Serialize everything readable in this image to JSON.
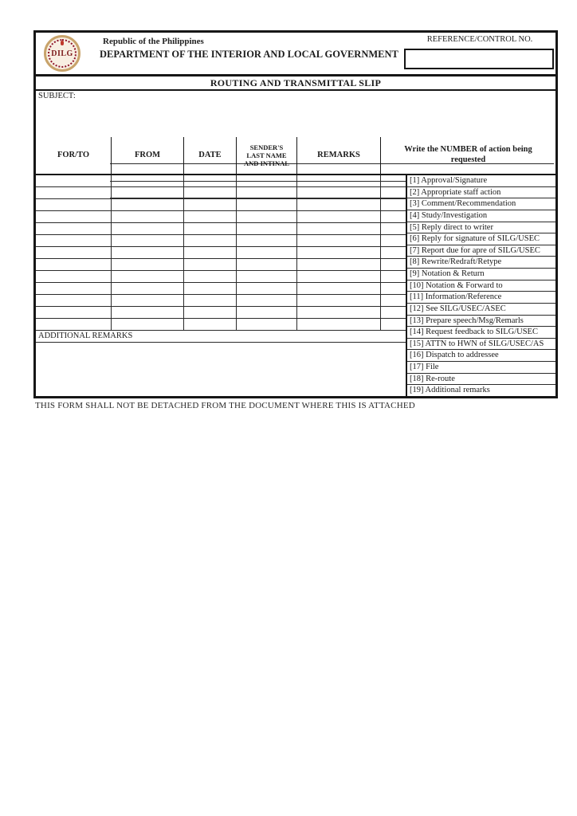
{
  "header": {
    "logo_text": "DILG",
    "republic_line": "Republic of the Philippines",
    "department_line": "DEPARTMENT OF THE INTERIOR AND LOCAL GOVERNMENT",
    "reference_label": "REFERENCE/CONTROL NO.",
    "reference_value": ""
  },
  "title_bar": {
    "title": "ROUTING AND TRANSMITTAL SLIP"
  },
  "subject": {
    "label": "SUBJECT:",
    "lines": [
      "",
      "",
      ""
    ],
    "line_tops": [
      78,
      100,
      121
    ]
  },
  "table": {
    "columns": [
      "FOR/TO",
      "FROM",
      "DATE",
      "SENDER'S\nLAST NAME\nAND INTINAL",
      "REMARKS"
    ],
    "action_header": "Write the NUMBER of action being requested",
    "empty_row_count": 13,
    "cell_names": [
      "for-to",
      "from",
      "date",
      "sender-name",
      "remarks",
      "action-number"
    ]
  },
  "action_list": {
    "items": [
      "[1] Approval/Signature",
      "[2] Appropriate staff action",
      "[3] Comment/Recommendation",
      "[4] Study/Investigation",
      "[5] Reply direct to writer",
      "[6] Reply for signature of SILG/USEC",
      "[7] Report due for apre of SILG/USEC",
      "[8] Rewrite/Redraft/Retype",
      "[9] Notation & Return",
      "[10] Notation & Forward to",
      "[11] Information/Reference",
      "[12] See SILG/USEC/ASEC",
      "[13] Prepare speech/Msg/Remarls",
      "[14]  Request feedback to SILG/USEC",
      "[15] ATTN to HWN of SILG/USEC/AS",
      "[16] Dispatch to addressee",
      "[17] File",
      "[18] Re-route",
      "[19] Additional remarks"
    ]
  },
  "additional_remarks": {
    "label": "ADDITIONAL REMARKS",
    "value": ""
  },
  "footer": {
    "note": "THIS FORM SHALL NOT BE DETACHED FROM THE DOCUMENT WHERE THIS IS ATTACHED"
  },
  "colors": {
    "border": "#161616",
    "logo_ring": "#c8a36b",
    "logo_dots": "#8c1127",
    "logo_text": "#7c1b1b"
  }
}
